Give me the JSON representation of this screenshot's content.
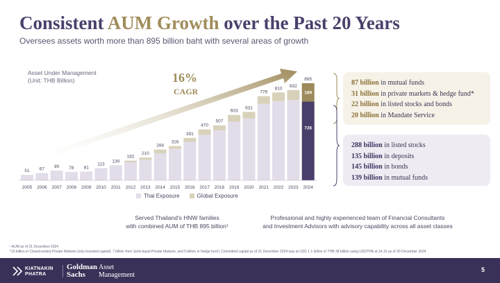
{
  "header": {
    "title_part1": "Consistent ",
    "title_highlight": "AUM Growth",
    "title_part2": " over the Past 20 Years",
    "subtitle": "Oversees assets worth more than 895 billion baht with several areas of growth"
  },
  "chart_label": {
    "line1": "Asset Under Management",
    "line2": "(Unit: THB Billion)"
  },
  "cagr": {
    "value": "16%",
    "label": "CAGR"
  },
  "chart_data": {
    "type": "bar",
    "stacked": true,
    "categories": [
      "2005",
      "2006",
      "2007",
      "2008",
      "2009",
      "2010",
      "2011",
      "2012",
      "2013",
      "2014",
      "2015",
      "2016",
      "2017",
      "2018",
      "2019",
      "2020",
      "2021",
      "2022",
      "2023",
      "2024"
    ],
    "totals": [
      51,
      67,
      90,
      78,
      81,
      113,
      139,
      182,
      210,
      284,
      316,
      391,
      470,
      507,
      603,
      631,
      776,
      810,
      832,
      895
    ],
    "series": [
      {
        "name": "Thai Exposure",
        "values": [
          51,
          67,
          90,
          78,
          81,
          113,
          139,
          166,
          191,
          248,
          292,
          355,
          420,
          460,
          540,
          570,
          705,
          730,
          740,
          726
        ]
      },
      {
        "name": "Global Exposure",
        "values": [
          0,
          0,
          0,
          0,
          0,
          0,
          0,
          16,
          19,
          36,
          24,
          36,
          50,
          47,
          63,
          61,
          71,
          80,
          92,
          169
        ]
      }
    ],
    "segment_labels_2024": {
      "thai": "726",
      "global": "169"
    },
    "ylim": [
      0,
      895
    ],
    "grid": false,
    "legend_position": "bottom"
  },
  "colors": {
    "thai": "#e2dde9",
    "global": "#d9d2bb",
    "thai_2024": "#4a3f6b",
    "global_2024": "#9c8a5c",
    "arrow": "#a08c5b",
    "title": "#4a3f6b",
    "footer": "#3a3158"
  },
  "global_breakdown": [
    {
      "amount": "87 billion",
      "desc": " in mutual funds"
    },
    {
      "amount": "31 billion",
      "desc": " in private markets & hedge fund*"
    },
    {
      "amount": "22 billion",
      "desc": " in listed stocks and bonds"
    },
    {
      "amount": "20 billion",
      "desc": " in Mandate Service"
    }
  ],
  "thai_breakdown": [
    {
      "amount": "288 billion",
      "desc": " in listed stocks"
    },
    {
      "amount": "135 billion",
      "desc": " in deposits"
    },
    {
      "amount": "145 billion",
      "desc": " in bonds"
    },
    {
      "amount": "139 billion",
      "desc": " in mutual funds"
    }
  ],
  "notes": {
    "served_line1": "Served Thailand's HNW families",
    "served_line2": "with combined AUM of THB 895 billion¹",
    "team_line1": "Professional and highly experienced team of Financial Consultants",
    "team_line2": "and Investment Advisors with advisory capability across all asset classes"
  },
  "footnotes": {
    "fn1": "¹ AUM as of 31 December 2024",
    "fn2": "*19 billion in Closed-ended Private Markets (only invested capital), 7 billion from Semi-liquid Private Markets, and 5 billion in hedge fund | Committed capital as of 31 December 2024 was at USD 1.1 billion or THB 38 billion using USDTHB at 34.15 as of 30 December 2024"
  },
  "footer": {
    "logo_kiatnakin": "KIATNAKIN\nPHATRA",
    "logo_gs": "Goldman\nSachs",
    "logo_am": "Asset\nManagement",
    "page_number": "5"
  }
}
